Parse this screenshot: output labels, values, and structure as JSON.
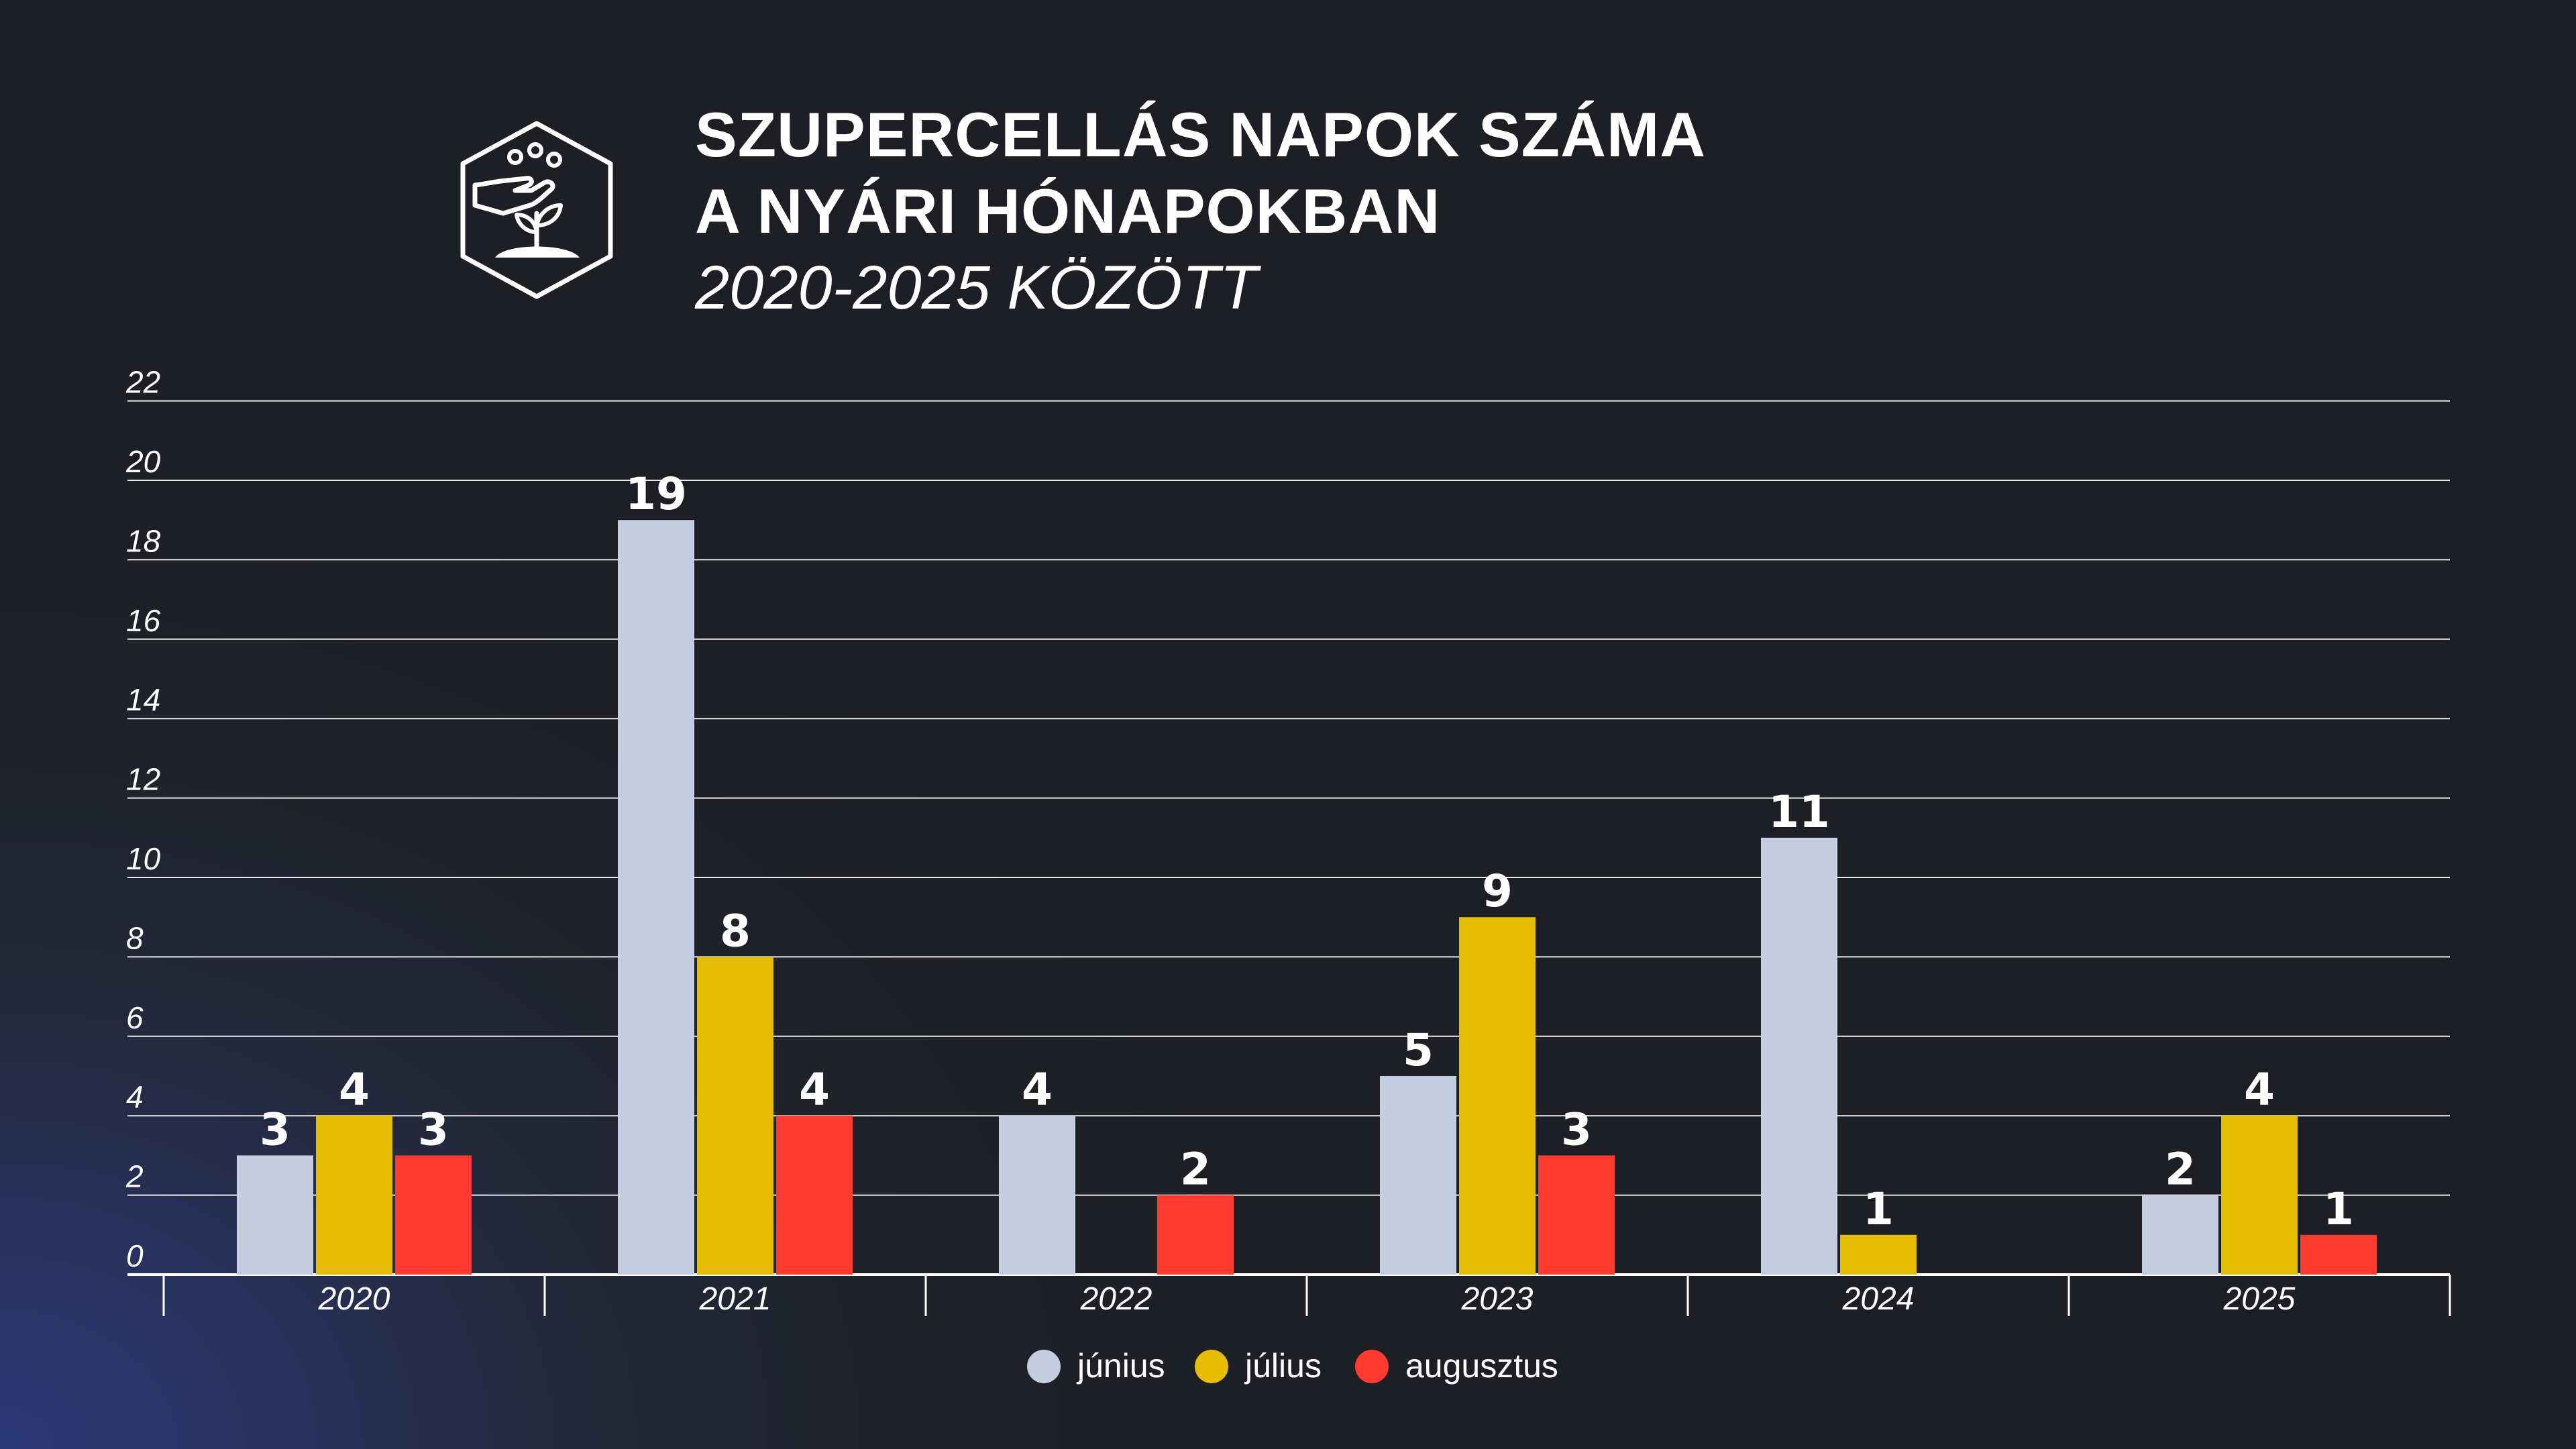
{
  "title_line1": "SZUPERCELLÁS NAPOK SZÁMA",
  "title_line2": "A NYÁRI HÓNAPOKBAN",
  "subtitle": "2020-2025 KÖZÖTT",
  "logo_icon": "hand-seedling-hexagon-icon",
  "chart_data": {
    "type": "bar",
    "title": "SZUPERCELLÁS NAPOK SZÁMA A NYÁRI HÓNAPOKBAN",
    "subtitle": "2020-2025 KÖZÖTT",
    "xlabel": "",
    "ylabel": "",
    "ylim": [
      0,
      22
    ],
    "yticks": [
      0,
      2,
      4,
      6,
      8,
      10,
      12,
      14,
      16,
      18,
      20,
      22
    ],
    "grid": true,
    "legend_position": "bottom-center",
    "categories": [
      "2020",
      "2021",
      "2022",
      "2023",
      "2024",
      "2025"
    ],
    "series": [
      {
        "name": "június",
        "color": "#c5cee0",
        "values": [
          3,
          19,
          4,
          5,
          11,
          2
        ]
      },
      {
        "name": "július",
        "color": "#e6bc00",
        "values": [
          4,
          8,
          0,
          9,
          1,
          4
        ]
      },
      {
        "name": "augusztus",
        "color": "#ff3a2e",
        "values": [
          3,
          4,
          2,
          3,
          0,
          1
        ]
      }
    ]
  }
}
